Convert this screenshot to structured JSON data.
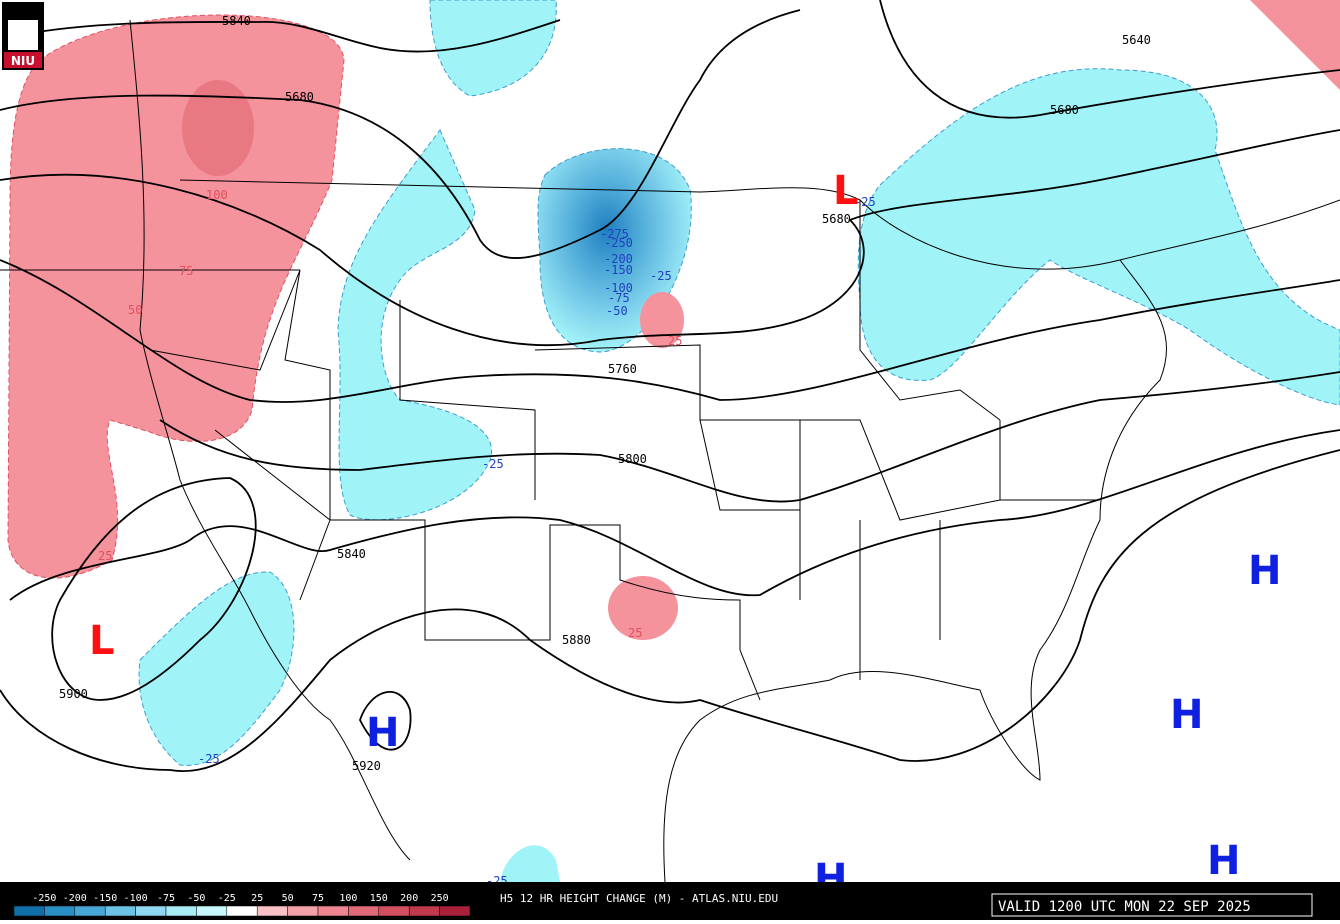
{
  "logo": "NIU",
  "contour_labels": [
    5840,
    5680,
    5640,
    5680,
    5680,
    5760,
    5800,
    5840,
    5880,
    5900,
    5920
  ],
  "change_labels": [
    100,
    75,
    50,
    25,
    25,
    25,
    -25,
    -25,
    -25,
    -25,
    -25,
    -50,
    -75,
    -100,
    -150,
    -200,
    -250,
    -275
  ],
  "lows": [
    "L",
    "L"
  ],
  "highs": [
    "H",
    "H",
    "H",
    "H",
    "H"
  ],
  "title": "H5 12 HR HEIGHT CHANGE (M) - ATLAS.NIU.EDU",
  "valid": "VALID 1200 UTC MON 22 SEP 2025",
  "legend": {
    "labels": [
      -250,
      -200,
      -150,
      -100,
      -75,
      -50,
      -25,
      25,
      50,
      75,
      100,
      150,
      200,
      250
    ],
    "colors": [
      "#0f6fa8",
      "#2a8fc4",
      "#47a7d6",
      "#6cc3e6",
      "#8ed8f0",
      "#a8ecf6",
      "#c6f8fb",
      "#ffffff",
      "#f8c1c6",
      "#f4a0a8",
      "#ee8590",
      "#e26a78",
      "#d44f60",
      "#c0394c",
      "#a8203a"
    ]
  }
}
